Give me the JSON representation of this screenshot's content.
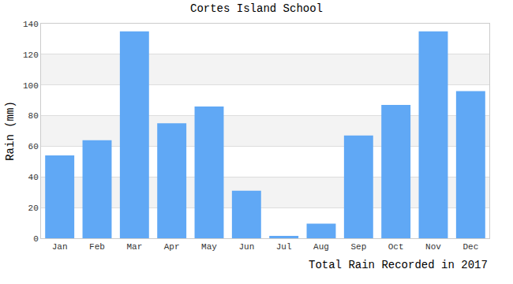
{
  "chart_data": {
    "type": "bar",
    "title": "Cortes Island School",
    "y_label": "Rain (mm)",
    "x_label": "Total Rain Recorded in 2017",
    "categories": [
      "Jan",
      "Feb",
      "Mar",
      "Apr",
      "May",
      "Jun",
      "Jul",
      "Aug",
      "Sep",
      "Oct",
      "Nov",
      "Dec"
    ],
    "values": [
      54,
      64,
      135,
      75,
      86,
      31,
      1.5,
      9.5,
      67,
      87,
      135,
      96
    ],
    "color": "#60a8f5",
    "ylim": [
      0,
      140
    ],
    "yticks": [
      0,
      20,
      40,
      60,
      80,
      100,
      120,
      140
    ],
    "grid": true
  }
}
